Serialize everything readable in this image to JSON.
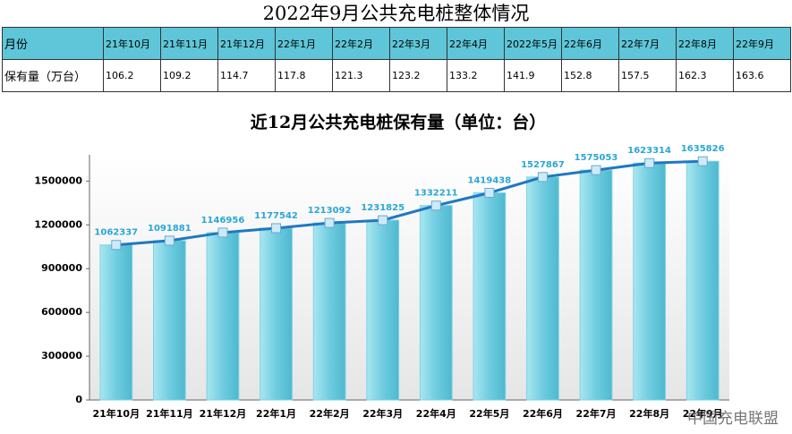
{
  "header": {
    "title": "2022年9月公共充电桩整体情况"
  },
  "table": {
    "rows": [
      [
        "月份",
        "21年10月",
        "21年11月",
        "21年12月",
        "22年1月",
        "22年2月",
        "22年3月",
        "22年4月",
        "2022年5月",
        "22年6月",
        "22年7月",
        "22年8月",
        "22年9月"
      ],
      [
        "保有量（万台）",
        "106.2",
        "109.2",
        "114.7",
        "117.8",
        "121.3",
        "123.2",
        "133.2",
        "141.9",
        "152.8",
        "157.5",
        "162.3",
        "163.6"
      ]
    ]
  },
  "chart_data": {
    "type": "bar",
    "title": "近12月公共充电桩保有量（单位：台）",
    "categories": [
      "21年10月",
      "21年11月",
      "21年12月",
      "22年1月",
      "22年2月",
      "22年3月",
      "22年4月",
      "22年5月",
      "22年6月",
      "22年7月",
      "22年8月",
      "22年9月"
    ],
    "values": [
      1062337,
      1091881,
      1146956,
      1177542,
      1213092,
      1231825,
      1332211,
      1419438,
      1527867,
      1575053,
      1623314,
      1635826
    ],
    "color": "#7dd3e3",
    "line_color": "#1f78c1",
    "label_color": "#2aa6d8",
    "line_overlay": true,
    "ylim": [
      0,
      1680000
    ],
    "yticks": [
      0,
      300000,
      600000,
      900000,
      1200000,
      1500000
    ],
    "watermark": "中国充电联盟"
  }
}
